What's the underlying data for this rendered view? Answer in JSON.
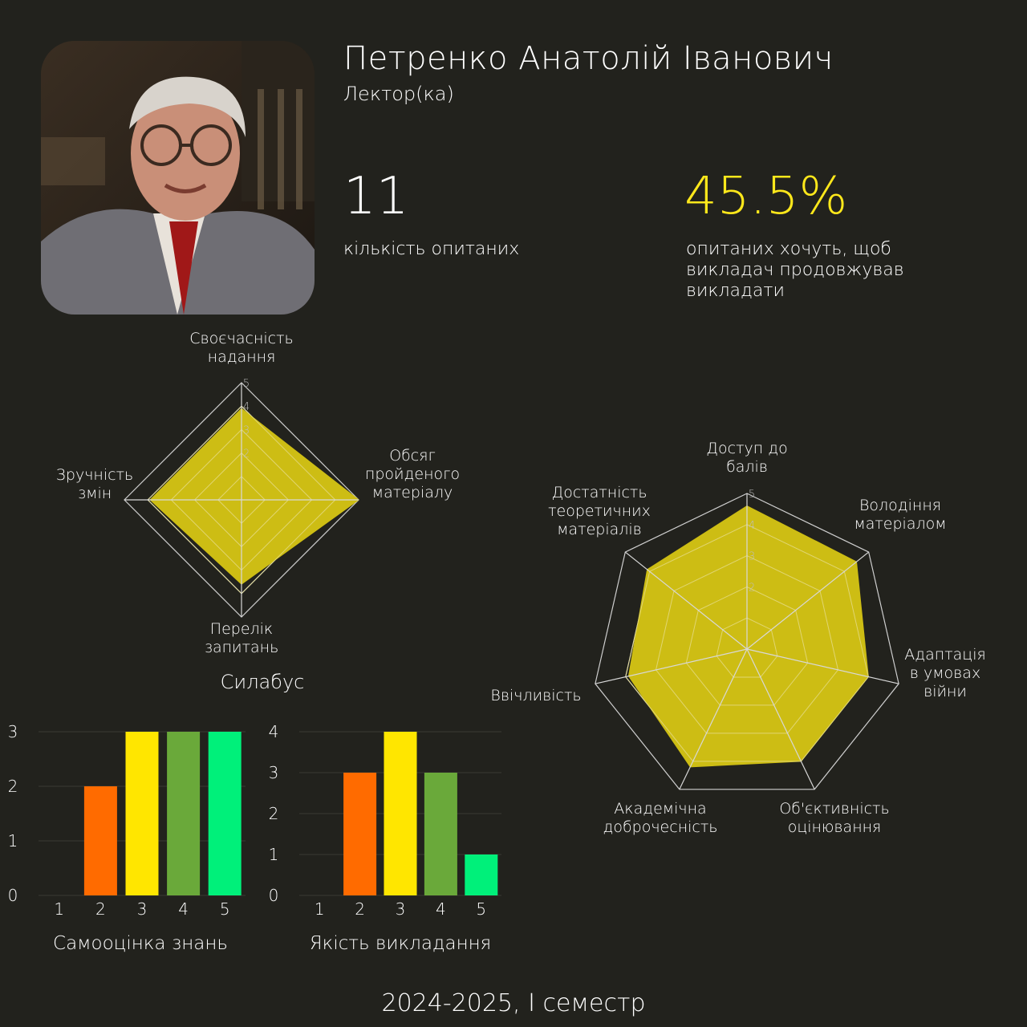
{
  "person": {
    "name": "Петренко Анатолій Іванович",
    "role": "Лектор(ка)"
  },
  "stats": {
    "respondents_value": "11",
    "respondents_label": "кількість опитаних",
    "continue_value": "45.5%",
    "continue_label": "опитаних хочуть, щоб викладач продовжував викладати"
  },
  "footer": "2024-2025, I семестр",
  "colors": {
    "background": "#22221d",
    "accent": "#ffe81b",
    "radar_fill": "#cdbd14",
    "bar_colors": [
      "#ff0000",
      "#ff6b00",
      "#ffe600",
      "#6aa93a",
      "#00f07a"
    ]
  },
  "chart_data": [
    {
      "type": "radar",
      "title": "Силабус",
      "axes": [
        "Своєчасність надання",
        "Обсяг пройденого матеріалу",
        "Перелік запитань",
        "Зручність змін"
      ],
      "axis_lines": [
        [
          "Своєчасність",
          "надання"
        ],
        [
          "Обсяг",
          "пройденого",
          "матеріалу"
        ],
        [
          "Перелік",
          "запитань"
        ],
        [
          "Зручність",
          "змін"
        ]
      ],
      "values": [
        3.9,
        5.0,
        3.6,
        3.9
      ],
      "scale_ticks": [
        "2",
        "3",
        "4",
        "5"
      ],
      "range": [
        0,
        5
      ]
    },
    {
      "type": "radar",
      "title": "",
      "axes": [
        "Доступ до балів",
        "Володіння матеріалом",
        "Адаптація в умовах війни",
        "Об'єктивність оцінювання",
        "Академічна доброчесність",
        "Ввічливість",
        "Достатність теоретичних матеріалів"
      ],
      "axis_lines": [
        [
          "Доступ до",
          "балів"
        ],
        [
          "Володіння",
          "матеріалом"
        ],
        [
          "Адаптація",
          "в умовах",
          "війни"
        ],
        [
          "Об'єктивність",
          "оцінювання"
        ],
        [
          "Академічна",
          "доброчесність"
        ],
        [
          "Ввічливість"
        ],
        [
          "Достатність",
          "теоретичних",
          "матеріалів"
        ]
      ],
      "values": [
        4.6,
        4.5,
        4.0,
        4.0,
        4.2,
        3.9,
        4.1
      ],
      "scale_ticks": [
        "2",
        "3",
        "4",
        "5"
      ],
      "range": [
        0,
        5
      ]
    },
    {
      "type": "bar",
      "title": "Самооцінка знань",
      "categories": [
        "1",
        "2",
        "3",
        "4",
        "5"
      ],
      "values": [
        0,
        2,
        3,
        3,
        3
      ],
      "yticks": [
        "0",
        "1",
        "2",
        "3"
      ],
      "ylim": [
        0,
        3
      ]
    },
    {
      "type": "bar",
      "title": "Якість викладання",
      "categories": [
        "1",
        "2",
        "3",
        "4",
        "5"
      ],
      "values": [
        0,
        3,
        4,
        3,
        1
      ],
      "yticks": [
        "0",
        "1",
        "2",
        "3",
        "4"
      ],
      "ylim": [
        0,
        4
      ]
    }
  ]
}
